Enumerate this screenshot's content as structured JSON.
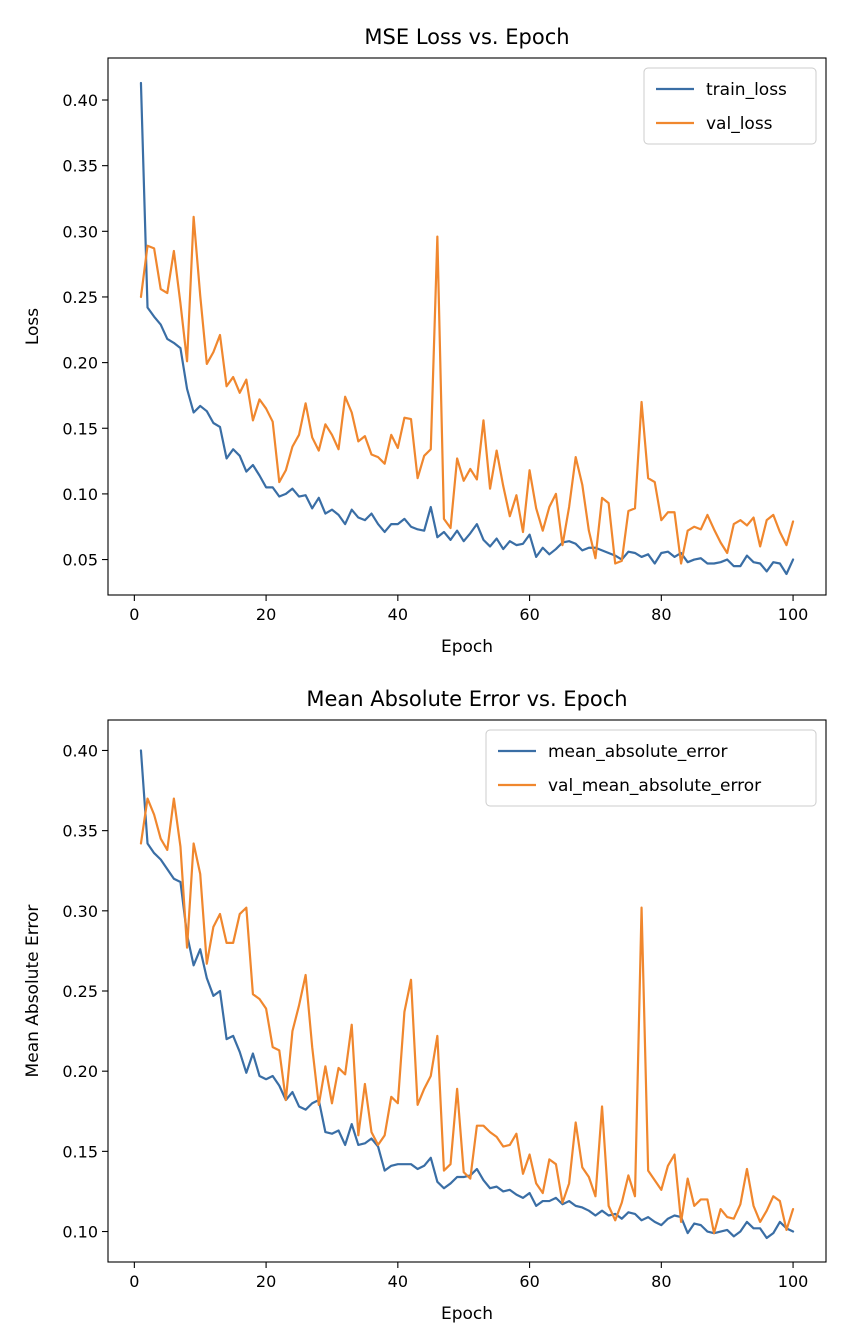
{
  "chart_data": [
    {
      "type": "line",
      "title": "MSE Loss vs. Epoch",
      "xlabel": "Epoch",
      "ylabel": "Loss",
      "xlim": [
        -4,
        105
      ],
      "ylim": [
        0.023,
        0.432
      ],
      "xticks": [
        0,
        20,
        40,
        60,
        80,
        100
      ],
      "yticks": [
        0.05,
        0.1,
        0.15,
        0.2,
        0.25,
        0.3,
        0.35,
        0.4
      ],
      "ytick_labels": [
        "0.05",
        "0.10",
        "0.15",
        "0.20",
        "0.25",
        "0.30",
        "0.35",
        "0.40"
      ],
      "grid": false,
      "legend_position": "top-right",
      "x": [
        1,
        2,
        3,
        4,
        5,
        6,
        7,
        8,
        9,
        10,
        11,
        12,
        13,
        14,
        15,
        16,
        17,
        18,
        19,
        20,
        21,
        22,
        23,
        24,
        25,
        26,
        27,
        28,
        29,
        30,
        31,
        32,
        33,
        34,
        35,
        36,
        37,
        38,
        39,
        40,
        41,
        42,
        43,
        44,
        45,
        46,
        47,
        48,
        49,
        50,
        51,
        52,
        53,
        54,
        55,
        56,
        57,
        58,
        59,
        60,
        61,
        62,
        63,
        64,
        65,
        66,
        67,
        68,
        69,
        70,
        71,
        72,
        73,
        74,
        75,
        76,
        77,
        78,
        79,
        80,
        81,
        82,
        83,
        84,
        85,
        86,
        87,
        88,
        89,
        90,
        91,
        92,
        93,
        94,
        95,
        96,
        97,
        98,
        99,
        100
      ],
      "series": [
        {
          "name": "train_loss",
          "color": "#3a6ea5",
          "values": [
            0.413,
            0.242,
            0.235,
            0.229,
            0.218,
            0.215,
            0.211,
            0.18,
            0.162,
            0.167,
            0.163,
            0.154,
            0.151,
            0.127,
            0.134,
            0.129,
            0.117,
            0.122,
            0.114,
            0.105,
            0.105,
            0.098,
            0.1,
            0.104,
            0.098,
            0.099,
            0.089,
            0.097,
            0.085,
            0.088,
            0.084,
            0.077,
            0.088,
            0.082,
            0.08,
            0.085,
            0.077,
            0.071,
            0.077,
            0.077,
            0.081,
            0.075,
            0.073,
            0.072,
            0.09,
            0.067,
            0.071,
            0.065,
            0.072,
            0.064,
            0.07,
            0.077,
            0.065,
            0.06,
            0.066,
            0.058,
            0.064,
            0.061,
            0.062,
            0.069,
            0.052,
            0.059,
            0.054,
            0.058,
            0.063,
            0.064,
            0.062,
            0.057,
            0.059,
            0.059,
            0.057,
            0.055,
            0.053,
            0.05,
            0.056,
            0.055,
            0.052,
            0.054,
            0.047,
            0.055,
            0.056,
            0.052,
            0.055,
            0.048,
            0.05,
            0.051,
            0.047,
            0.047,
            0.048,
            0.05,
            0.045,
            0.045,
            0.053,
            0.048,
            0.047,
            0.041,
            0.048,
            0.047,
            0.039,
            0.05
          ]
        },
        {
          "name": "val_loss",
          "color": "#f0872e",
          "values": [
            0.25,
            0.289,
            0.287,
            0.256,
            0.253,
            0.285,
            0.245,
            0.201,
            0.311,
            0.251,
            0.199,
            0.208,
            0.221,
            0.182,
            0.189,
            0.177,
            0.187,
            0.156,
            0.172,
            0.165,
            0.155,
            0.109,
            0.118,
            0.136,
            0.145,
            0.169,
            0.143,
            0.133,
            0.153,
            0.145,
            0.134,
            0.174,
            0.162,
            0.14,
            0.144,
            0.13,
            0.128,
            0.123,
            0.145,
            0.135,
            0.158,
            0.157,
            0.112,
            0.129,
            0.134,
            0.296,
            0.081,
            0.074,
            0.127,
            0.11,
            0.119,
            0.111,
            0.156,
            0.104,
            0.133,
            0.106,
            0.083,
            0.099,
            0.071,
            0.118,
            0.089,
            0.072,
            0.09,
            0.1,
            0.061,
            0.09,
            0.128,
            0.107,
            0.072,
            0.051,
            0.097,
            0.093,
            0.047,
            0.049,
            0.087,
            0.089,
            0.17,
            0.112,
            0.109,
            0.08,
            0.086,
            0.086,
            0.047,
            0.072,
            0.075,
            0.073,
            0.084,
            0.073,
            0.063,
            0.055,
            0.077,
            0.08,
            0.076,
            0.082,
            0.06,
            0.08,
            0.084,
            0.071,
            0.061,
            0.079
          ]
        }
      ]
    },
    {
      "type": "line",
      "title": "Mean Absolute Error vs. Epoch",
      "xlabel": "Epoch",
      "ylabel": "Mean Absolute Error",
      "xlim": [
        -4,
        105
      ],
      "ylim": [
        0.081,
        0.419
      ],
      "xticks": [
        0,
        20,
        40,
        60,
        80,
        100
      ],
      "yticks": [
        0.1,
        0.15,
        0.2,
        0.25,
        0.3,
        0.35,
        0.4
      ],
      "ytick_labels": [
        "0.10",
        "0.15",
        "0.20",
        "0.25",
        "0.30",
        "0.35",
        "0.40"
      ],
      "grid": false,
      "legend_position": "top-right",
      "x": [
        1,
        2,
        3,
        4,
        5,
        6,
        7,
        8,
        9,
        10,
        11,
        12,
        13,
        14,
        15,
        16,
        17,
        18,
        19,
        20,
        21,
        22,
        23,
        24,
        25,
        26,
        27,
        28,
        29,
        30,
        31,
        32,
        33,
        34,
        35,
        36,
        37,
        38,
        39,
        40,
        41,
        42,
        43,
        44,
        45,
        46,
        47,
        48,
        49,
        50,
        51,
        52,
        53,
        54,
        55,
        56,
        57,
        58,
        59,
        60,
        61,
        62,
        63,
        64,
        65,
        66,
        67,
        68,
        69,
        70,
        71,
        72,
        73,
        74,
        75,
        76,
        77,
        78,
        79,
        80,
        81,
        82,
        83,
        84,
        85,
        86,
        87,
        88,
        89,
        90,
        91,
        92,
        93,
        94,
        95,
        96,
        97,
        98,
        99,
        100
      ],
      "series": [
        {
          "name": "mean_absolute_error",
          "color": "#3a6ea5",
          "values": [
            0.4,
            0.342,
            0.336,
            0.332,
            0.326,
            0.32,
            0.318,
            0.285,
            0.266,
            0.276,
            0.258,
            0.247,
            0.25,
            0.22,
            0.222,
            0.212,
            0.199,
            0.211,
            0.197,
            0.195,
            0.197,
            0.191,
            0.182,
            0.187,
            0.178,
            0.176,
            0.18,
            0.182,
            0.162,
            0.161,
            0.163,
            0.154,
            0.167,
            0.154,
            0.155,
            0.158,
            0.153,
            0.138,
            0.141,
            0.142,
            0.142,
            0.142,
            0.139,
            0.141,
            0.146,
            0.131,
            0.127,
            0.13,
            0.134,
            0.134,
            0.135,
            0.139,
            0.132,
            0.127,
            0.128,
            0.125,
            0.126,
            0.123,
            0.121,
            0.124,
            0.116,
            0.119,
            0.119,
            0.121,
            0.117,
            0.119,
            0.116,
            0.115,
            0.113,
            0.11,
            0.113,
            0.11,
            0.111,
            0.108,
            0.112,
            0.111,
            0.107,
            0.109,
            0.106,
            0.104,
            0.108,
            0.11,
            0.109,
            0.099,
            0.105,
            0.104,
            0.1,
            0.099,
            0.1,
            0.101,
            0.097,
            0.1,
            0.106,
            0.102,
            0.102,
            0.096,
            0.099,
            0.106,
            0.102,
            0.1
          ]
        },
        {
          "name": "val_mean_absolute_error",
          "color": "#f0872e",
          "values": [
            0.342,
            0.37,
            0.36,
            0.345,
            0.338,
            0.37,
            0.34,
            0.277,
            0.342,
            0.323,
            0.267,
            0.29,
            0.298,
            0.28,
            0.28,
            0.298,
            0.302,
            0.248,
            0.245,
            0.239,
            0.215,
            0.213,
            0.182,
            0.225,
            0.241,
            0.26,
            0.215,
            0.179,
            0.203,
            0.18,
            0.202,
            0.198,
            0.229,
            0.16,
            0.192,
            0.162,
            0.154,
            0.16,
            0.184,
            0.18,
            0.237,
            0.257,
            0.179,
            0.189,
            0.197,
            0.222,
            0.138,
            0.142,
            0.189,
            0.137,
            0.133,
            0.166,
            0.166,
            0.162,
            0.159,
            0.153,
            0.154,
            0.161,
            0.136,
            0.148,
            0.13,
            0.124,
            0.145,
            0.142,
            0.118,
            0.13,
            0.168,
            0.14,
            0.134,
            0.122,
            0.178,
            0.116,
            0.107,
            0.118,
            0.135,
            0.122,
            0.302,
            0.138,
            0.132,
            0.126,
            0.141,
            0.148,
            0.106,
            0.133,
            0.116,
            0.12,
            0.12,
            0.099,
            0.114,
            0.109,
            0.108,
            0.117,
            0.139,
            0.116,
            0.106,
            0.113,
            0.122,
            0.119,
            0.101,
            0.114
          ]
        }
      ]
    }
  ]
}
